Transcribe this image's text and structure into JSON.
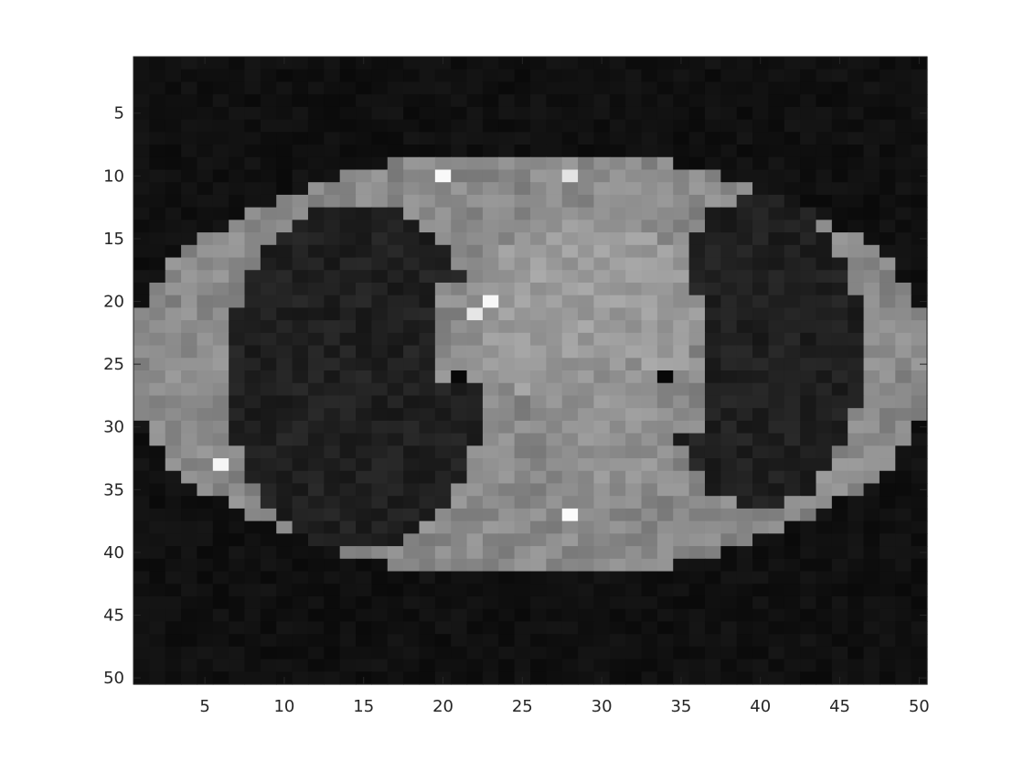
{
  "figure": {
    "background_color": "#ffffff",
    "axes_color": "#262626"
  },
  "image": {
    "kind": "grayscale CT scan slice (chest/lungs), shown pixelated",
    "grid_size": [
      50,
      50
    ],
    "colormap": "gray"
  },
  "axes": {
    "x_ticks": [
      "5",
      "10",
      "15",
      "20",
      "25",
      "30",
      "35",
      "40",
      "45",
      "50"
    ],
    "y_ticks": [
      "5",
      "10",
      "15",
      "20",
      "25",
      "30",
      "35",
      "40",
      "45",
      "50"
    ],
    "x_range": [
      0.5,
      50.5
    ],
    "y_range": [
      0.5,
      50.5
    ],
    "y_direction": "reversed"
  }
}
